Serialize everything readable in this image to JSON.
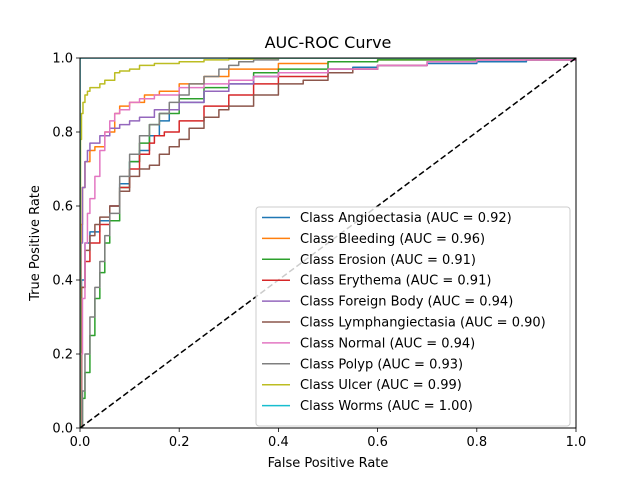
{
  "chart_data": {
    "type": "line",
    "title": "AUC-ROC Curve",
    "xlabel": "False Positive Rate",
    "ylabel": "True Positive Rate",
    "xlim": [
      0,
      1
    ],
    "ylim": [
      0,
      1
    ],
    "xticks": [
      "0.0",
      "0.2",
      "0.4",
      "0.6",
      "0.8",
      "1.0"
    ],
    "yticks": [
      "0.0",
      "0.2",
      "0.4",
      "0.6",
      "0.8",
      "1.0"
    ],
    "grid": false,
    "legend_position": "lower right",
    "diagonal": {
      "x": [
        0,
        1
      ],
      "y": [
        0,
        1
      ],
      "color": "#000000",
      "style": "dashed"
    },
    "series": [
      {
        "name": "Class Angioectasia (AUC = 0.92)",
        "color": "#1f77b4",
        "x": [
          0,
          0.003,
          0.01,
          0.02,
          0.04,
          0.06,
          0.08,
          0.1,
          0.12,
          0.14,
          0.16,
          0.18,
          0.2,
          0.25,
          0.3,
          0.35,
          0.4,
          0.5,
          0.55,
          0.6,
          0.7,
          0.8,
          0.9,
          1.0
        ],
        "y": [
          0,
          0.4,
          0.5,
          0.53,
          0.56,
          0.6,
          0.66,
          0.72,
          0.75,
          0.79,
          0.83,
          0.86,
          0.88,
          0.91,
          0.93,
          0.95,
          0.96,
          0.97,
          0.975,
          0.98,
          0.985,
          0.99,
          0.995,
          1.0
        ]
      },
      {
        "name": "Class Bleeding (AUC = 0.96)",
        "color": "#ff7f0e",
        "x": [
          0,
          0.002,
          0.005,
          0.01,
          0.02,
          0.03,
          0.05,
          0.07,
          0.08,
          0.1,
          0.13,
          0.16,
          0.2,
          0.25,
          0.3,
          0.4,
          0.5,
          0.6,
          0.8,
          1.0
        ],
        "y": [
          0,
          0.55,
          0.65,
          0.72,
          0.75,
          0.76,
          0.8,
          0.85,
          0.87,
          0.88,
          0.9,
          0.91,
          0.93,
          0.95,
          0.97,
          0.985,
          0.99,
          0.995,
          1.0,
          1.0
        ]
      },
      {
        "name": "Class Erosion (AUC = 0.91)",
        "color": "#2ca02c",
        "x": [
          0,
          0.005,
          0.01,
          0.02,
          0.03,
          0.04,
          0.05,
          0.06,
          0.08,
          0.1,
          0.12,
          0.14,
          0.16,
          0.2,
          0.25,
          0.3,
          0.35,
          0.4,
          0.5,
          0.6,
          0.8,
          1.0
        ],
        "y": [
          0,
          0.08,
          0.15,
          0.25,
          0.35,
          0.42,
          0.5,
          0.56,
          0.65,
          0.72,
          0.77,
          0.82,
          0.85,
          0.89,
          0.92,
          0.94,
          0.96,
          0.97,
          0.99,
          0.995,
          1.0,
          1.0
        ]
      },
      {
        "name": "Class Erythema (AUC = 0.91)",
        "color": "#d62728",
        "x": [
          0,
          0.003,
          0.01,
          0.02,
          0.04,
          0.06,
          0.08,
          0.1,
          0.12,
          0.14,
          0.15,
          0.17,
          0.2,
          0.25,
          0.3,
          0.35,
          0.4,
          0.5,
          0.6,
          0.7,
          0.8,
          1.0
        ],
        "y": [
          0,
          0.38,
          0.45,
          0.5,
          0.55,
          0.6,
          0.65,
          0.7,
          0.74,
          0.77,
          0.79,
          0.8,
          0.83,
          0.87,
          0.9,
          0.93,
          0.95,
          0.97,
          0.98,
          0.99,
          0.995,
          1.0
        ]
      },
      {
        "name": "Class Foreign Body (AUC = 0.94)",
        "color": "#9467bd",
        "x": [
          0,
          0.002,
          0.005,
          0.01,
          0.015,
          0.02,
          0.04,
          0.06,
          0.08,
          0.1,
          0.12,
          0.15,
          0.2,
          0.25,
          0.3,
          0.35,
          0.4,
          0.5,
          0.6,
          0.7,
          0.8,
          1.0
        ],
        "y": [
          0,
          0.5,
          0.65,
          0.72,
          0.75,
          0.77,
          0.79,
          0.81,
          0.82,
          0.83,
          0.84,
          0.86,
          0.88,
          0.91,
          0.93,
          0.95,
          0.96,
          0.97,
          0.98,
          0.99,
          0.995,
          1.0
        ]
      },
      {
        "name": "Class Lymphangiectasia (AUC = 0.90)",
        "color": "#8c564b",
        "x": [
          0,
          0.003,
          0.01,
          0.02,
          0.03,
          0.04,
          0.06,
          0.08,
          0.1,
          0.12,
          0.14,
          0.16,
          0.18,
          0.2,
          0.22,
          0.25,
          0.28,
          0.3,
          0.35,
          0.4,
          0.45,
          0.5,
          0.55,
          0.6,
          0.7,
          0.8,
          1.0
        ],
        "y": [
          0,
          0.38,
          0.48,
          0.52,
          0.55,
          0.57,
          0.6,
          0.64,
          0.68,
          0.7,
          0.71,
          0.74,
          0.76,
          0.78,
          0.81,
          0.84,
          0.86,
          0.87,
          0.9,
          0.93,
          0.94,
          0.96,
          0.97,
          0.98,
          0.99,
          0.995,
          1.0
        ]
      },
      {
        "name": "Class Normal (AUC = 0.94)",
        "color": "#e377c2",
        "x": [
          0,
          0.002,
          0.005,
          0.01,
          0.015,
          0.02,
          0.03,
          0.04,
          0.05,
          0.06,
          0.07,
          0.08,
          0.1,
          0.12,
          0.15,
          0.2,
          0.25,
          0.3,
          0.35,
          0.4,
          0.5,
          0.6,
          0.7,
          0.8,
          1.0
        ],
        "y": [
          0,
          0.2,
          0.35,
          0.5,
          0.58,
          0.62,
          0.68,
          0.75,
          0.8,
          0.83,
          0.85,
          0.86,
          0.88,
          0.89,
          0.9,
          0.92,
          0.93,
          0.94,
          0.95,
          0.96,
          0.97,
          0.98,
          0.99,
          0.995,
          1.0
        ]
      },
      {
        "name": "Class Polyp (AUC = 0.93)",
        "color": "#7f7f7f",
        "x": [
          0,
          0.005,
          0.01,
          0.02,
          0.03,
          0.04,
          0.05,
          0.06,
          0.08,
          0.1,
          0.12,
          0.14,
          0.16,
          0.18,
          0.2,
          0.22,
          0.25,
          0.28,
          0.3,
          0.32,
          0.35,
          0.4,
          0.5,
          0.6,
          1.0
        ],
        "y": [
          0,
          0.1,
          0.2,
          0.3,
          0.38,
          0.45,
          0.52,
          0.58,
          0.68,
          0.74,
          0.79,
          0.82,
          0.85,
          0.88,
          0.9,
          0.93,
          0.95,
          0.97,
          0.98,
          0.99,
          0.995,
          1.0,
          1.0,
          1.0,
          1.0
        ]
      },
      {
        "name": "Class Ulcer (AUC = 0.99)",
        "color": "#bcbd22",
        "x": [
          0,
          0.001,
          0.003,
          0.006,
          0.01,
          0.015,
          0.02,
          0.03,
          0.04,
          0.05,
          0.07,
          0.08,
          0.1,
          0.12,
          0.15,
          0.2,
          0.25,
          0.3,
          0.35,
          0.4,
          0.5,
          1.0
        ],
        "y": [
          0,
          0.78,
          0.85,
          0.88,
          0.9,
          0.91,
          0.92,
          0.92,
          0.93,
          0.94,
          0.96,
          0.965,
          0.97,
          0.98,
          0.985,
          0.99,
          0.995,
          0.997,
          0.999,
          1.0,
          1.0,
          1.0
        ]
      },
      {
        "name": "Class Worms (AUC = 1.00)",
        "color": "#17becf",
        "x": [
          0,
          0,
          1.0
        ],
        "y": [
          0,
          1.0,
          1.0
        ]
      }
    ]
  }
}
